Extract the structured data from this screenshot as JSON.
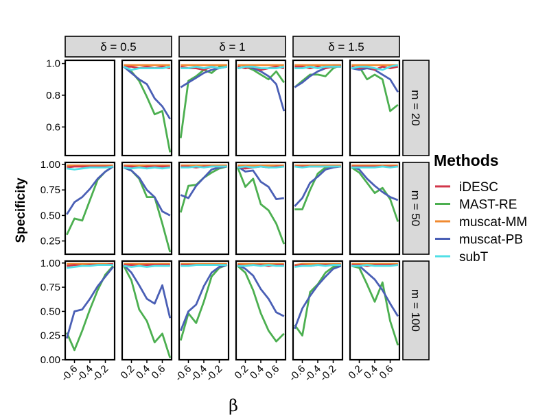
{
  "chart_data": {
    "type": "line",
    "ylabel": "Specificity",
    "xlabel": "β",
    "col_strips": [
      "δ = 0.5",
      "δ = 1",
      "δ = 1.5"
    ],
    "row_strips": [
      "m = 20",
      "m = 50",
      "m = 100"
    ],
    "row_ylim": [
      [
        0.42,
        1.02
      ],
      [
        0.12,
        1.02
      ],
      [
        0.0,
        1.02
      ]
    ],
    "row_yticks": [
      [
        {
          "v": 1.0,
          "label": "1.0"
        },
        {
          "v": 0.8,
          "label": "0.8"
        },
        {
          "v": 0.6,
          "label": "0.6"
        }
      ],
      [
        {
          "v": 1.0,
          "label": "1.00"
        },
        {
          "v": 0.75,
          "label": "0.75"
        },
        {
          "v": 0.5,
          "label": "0.50"
        },
        {
          "v": 0.25,
          "label": "0.25"
        }
      ],
      [
        {
          "v": 1.0,
          "label": "1.00"
        },
        {
          "v": 0.75,
          "label": "0.75"
        },
        {
          "v": 0.5,
          "label": "0.50"
        },
        {
          "v": 0.25,
          "label": "0.25"
        },
        {
          "v": 0.0,
          "label": "0.00"
        }
      ]
    ],
    "side_x": {
      "neg": {
        "x": [
          -0.7,
          -0.6,
          -0.5,
          -0.4,
          -0.3,
          -0.2,
          -0.1
        ],
        "ticks": [
          "-0.6",
          "-0.4",
          "-0.2"
        ],
        "tick_vals": [
          -0.6,
          -0.4,
          -0.2
        ],
        "xlim": [
          -0.72,
          -0.08
        ]
      },
      "pos": {
        "x": [
          0.1,
          0.2,
          0.3,
          0.4,
          0.5,
          0.6,
          0.7
        ],
        "ticks": [
          "0.2",
          "0.4",
          "0.6"
        ],
        "tick_vals": [
          0.2,
          0.4,
          0.6
        ],
        "xlim": [
          0.08,
          0.72
        ]
      }
    },
    "legend": {
      "title": "Methods",
      "items": [
        {
          "name": "iDESC",
          "color": "#d2364a"
        },
        {
          "name": "MAST-RE",
          "color": "#4caf50"
        },
        {
          "name": "muscat-MM",
          "color": "#f08a30"
        },
        {
          "name": "muscat-PB",
          "color": "#4a5fb5"
        },
        {
          "name": "subT",
          "color": "#50dfe6"
        }
      ]
    },
    "panels": [
      {
        "row": 0,
        "col": 0,
        "side": "neg",
        "series": {}
      },
      {
        "row": 0,
        "col": 0,
        "side": "pos",
        "series": {
          "iDESC": [
            0.98,
            0.98,
            0.97,
            0.98,
            0.97,
            0.98,
            0.97
          ],
          "MAST-RE": [
            0.98,
            0.95,
            0.89,
            0.79,
            0.68,
            0.7,
            0.44
          ],
          "muscat-MM": [
            0.99,
            0.99,
            0.99,
            0.99,
            0.99,
            0.99,
            0.99
          ],
          "muscat-PB": [
            0.98,
            0.94,
            0.9,
            0.87,
            0.78,
            0.73,
            0.65
          ],
          "subT": [
            0.98,
            0.96,
            0.97,
            0.97,
            0.97,
            0.97,
            0.98
          ]
        }
      },
      {
        "row": 0,
        "col": 1,
        "side": "neg",
        "series": {
          "iDESC": [
            0.98,
            0.97,
            0.97,
            0.96,
            0.98,
            0.97,
            0.98
          ],
          "MAST-RE": [
            0.53,
            0.89,
            0.92,
            0.96,
            0.94,
            0.98,
            0.99
          ],
          "muscat-MM": [
            0.99,
            0.99,
            0.99,
            0.99,
            0.99,
            0.99,
            0.99
          ],
          "muscat-PB": [
            0.85,
            0.88,
            0.91,
            0.94,
            0.96,
            0.97,
            0.98
          ],
          "subT": [
            0.97,
            0.97,
            0.98,
            0.97,
            0.98,
            0.97,
            0.98
          ]
        }
      },
      {
        "row": 0,
        "col": 1,
        "side": "pos",
        "series": {
          "iDESC": [
            0.98,
            0.97,
            0.98,
            0.96,
            0.97,
            0.98,
            0.97
          ],
          "MAST-RE": [
            0.97,
            0.98,
            0.96,
            0.93,
            0.9,
            0.95,
            0.88
          ],
          "muscat-MM": [
            0.99,
            0.99,
            0.99,
            0.99,
            0.99,
            0.99,
            0.99
          ],
          "muscat-PB": [
            0.97,
            0.98,
            0.97,
            0.95,
            0.92,
            0.87,
            0.7
          ],
          "subT": [
            0.97,
            0.98,
            0.98,
            0.97,
            0.97,
            0.97,
            0.98
          ]
        }
      },
      {
        "row": 0,
        "col": 2,
        "side": "neg",
        "series": {
          "iDESC": [
            0.98,
            0.98,
            0.97,
            0.98,
            0.97,
            0.98,
            0.98
          ],
          "MAST-RE": [
            0.85,
            0.89,
            0.93,
            0.93,
            0.92,
            0.97,
            0.99
          ],
          "muscat-MM": [
            0.99,
            0.99,
            0.99,
            0.99,
            0.99,
            0.99,
            0.99
          ],
          "muscat-PB": [
            0.85,
            0.88,
            0.92,
            0.95,
            0.97,
            0.99,
            0.99
          ],
          "subT": [
            0.97,
            0.97,
            0.98,
            0.97,
            0.98,
            0.98,
            0.98
          ]
        }
      },
      {
        "row": 0,
        "col": 2,
        "side": "pos",
        "series": {
          "iDESC": [
            0.98,
            0.97,
            0.98,
            0.96,
            0.98,
            0.97,
            0.98
          ],
          "MAST-RE": [
            0.97,
            0.98,
            0.9,
            0.93,
            0.9,
            0.7,
            0.74
          ],
          "muscat-MM": [
            0.99,
            0.99,
            0.99,
            0.99,
            0.99,
            0.99,
            0.99
          ],
          "muscat-PB": [
            0.97,
            0.96,
            0.97,
            0.96,
            0.93,
            0.9,
            0.82
          ],
          "subT": [
            0.97,
            0.98,
            0.98,
            0.97,
            0.96,
            0.98,
            0.99
          ]
        }
      },
      {
        "row": 1,
        "col": 0,
        "side": "neg",
        "series": {
          "iDESC": [
            0.97,
            0.98,
            0.98,
            0.98,
            0.98,
            0.98,
            0.98
          ],
          "MAST-RE": [
            0.31,
            0.47,
            0.45,
            0.65,
            0.85,
            0.93,
            0.98
          ],
          "muscat-MM": [
            0.99,
            0.99,
            0.99,
            0.99,
            0.99,
            0.99,
            0.99
          ],
          "muscat-PB": [
            0.51,
            0.63,
            0.68,
            0.76,
            0.86,
            0.93,
            0.98
          ],
          "subT": [
            0.96,
            0.95,
            0.96,
            0.97,
            0.97,
            0.97,
            0.98
          ]
        }
      },
      {
        "row": 1,
        "col": 0,
        "side": "pos",
        "series": {
          "iDESC": [
            0.98,
            0.98,
            0.97,
            0.98,
            0.98,
            0.98,
            0.98
          ],
          "MAST-RE": [
            0.97,
            0.94,
            0.86,
            0.68,
            0.68,
            0.42,
            0.14
          ],
          "muscat-MM": [
            0.99,
            0.99,
            0.99,
            0.99,
            0.99,
            0.99,
            0.99
          ],
          "muscat-PB": [
            0.97,
            0.94,
            0.87,
            0.75,
            0.68,
            0.54,
            0.5
          ],
          "subT": [
            0.97,
            0.96,
            0.97,
            0.96,
            0.97,
            0.96,
            0.97
          ]
        }
      },
      {
        "row": 1,
        "col": 1,
        "side": "neg",
        "series": {
          "iDESC": [
            0.98,
            0.98,
            0.97,
            0.98,
            0.98,
            0.98,
            0.98
          ],
          "MAST-RE": [
            0.53,
            0.79,
            0.8,
            0.87,
            0.92,
            0.96,
            0.98
          ],
          "muscat-MM": [
            0.99,
            0.99,
            0.99,
            0.99,
            0.99,
            0.99,
            0.99
          ],
          "muscat-PB": [
            0.7,
            0.67,
            0.79,
            0.87,
            0.95,
            0.97,
            0.98
          ],
          "subT": [
            0.97,
            0.97,
            0.98,
            0.97,
            0.98,
            0.98,
            0.98
          ]
        }
      },
      {
        "row": 1,
        "col": 1,
        "side": "pos",
        "series": {
          "iDESC": [
            0.98,
            0.96,
            0.97,
            0.98,
            0.97,
            0.98,
            0.98
          ],
          "MAST-RE": [
            0.97,
            0.78,
            0.86,
            0.61,
            0.55,
            0.42,
            0.22
          ],
          "muscat-MM": [
            0.99,
            0.99,
            0.99,
            0.99,
            0.99,
            0.99,
            0.99
          ],
          "muscat-PB": [
            0.98,
            0.93,
            0.94,
            0.83,
            0.78,
            0.66,
            0.67
          ],
          "subT": [
            0.97,
            0.98,
            0.97,
            0.98,
            0.97,
            0.97,
            0.98
          ]
        }
      },
      {
        "row": 1,
        "col": 2,
        "side": "neg",
        "series": {
          "iDESC": [
            0.98,
            0.98,
            0.98,
            0.98,
            0.98,
            0.98,
            0.98
          ],
          "MAST-RE": [
            0.56,
            0.56,
            0.75,
            0.91,
            0.97,
            0.98,
            0.98
          ],
          "muscat-MM": [
            0.99,
            0.99,
            0.99,
            0.99,
            0.99,
            0.99,
            0.99
          ],
          "muscat-PB": [
            0.59,
            0.67,
            0.82,
            0.88,
            0.95,
            0.97,
            0.98
          ],
          "subT": [
            0.98,
            0.97,
            0.98,
            0.98,
            0.98,
            0.98,
            0.98
          ]
        }
      },
      {
        "row": 1,
        "col": 2,
        "side": "pos",
        "series": {
          "iDESC": [
            0.98,
            0.98,
            0.98,
            0.98,
            0.98,
            0.98,
            0.98
          ],
          "MAST-RE": [
            0.97,
            0.92,
            0.82,
            0.72,
            0.77,
            0.66,
            0.44
          ],
          "muscat-MM": [
            0.99,
            0.99,
            0.99,
            0.99,
            0.99,
            0.99,
            0.99
          ],
          "muscat-PB": [
            0.98,
            0.95,
            0.86,
            0.79,
            0.73,
            0.68,
            0.65
          ],
          "subT": [
            0.97,
            0.97,
            0.97,
            0.97,
            0.98,
            0.97,
            0.98
          ]
        }
      },
      {
        "row": 2,
        "col": 0,
        "side": "neg",
        "series": {
          "iDESC": [
            0.97,
            0.98,
            0.97,
            0.98,
            0.98,
            0.98,
            0.99
          ],
          "MAST-RE": [
            0.28,
            0.1,
            0.3,
            0.52,
            0.72,
            0.88,
            0.97
          ],
          "muscat-MM": [
            0.99,
            0.99,
            0.99,
            0.99,
            0.99,
            0.99,
            0.99
          ],
          "muscat-PB": [
            0.22,
            0.5,
            0.52,
            0.63,
            0.76,
            0.86,
            0.96
          ],
          "subT": [
            0.95,
            0.96,
            0.97,
            0.97,
            0.98,
            0.98,
            0.98
          ]
        }
      },
      {
        "row": 2,
        "col": 0,
        "side": "pos",
        "series": {
          "iDESC": [
            0.98,
            0.98,
            0.97,
            0.98,
            0.98,
            0.98,
            0.98
          ],
          "MAST-RE": [
            0.97,
            0.82,
            0.52,
            0.4,
            0.18,
            0.27,
            0.02
          ],
          "muscat-MM": [
            0.99,
            0.99,
            0.99,
            0.99,
            0.99,
            0.99,
            0.99
          ],
          "muscat-PB": [
            0.98,
            0.9,
            0.77,
            0.63,
            0.58,
            0.77,
            0.43
          ],
          "subT": [
            0.97,
            0.96,
            0.97,
            0.96,
            0.97,
            0.97,
            0.97
          ]
        }
      },
      {
        "row": 2,
        "col": 1,
        "side": "neg",
        "series": {
          "iDESC": [
            0.98,
            0.98,
            0.98,
            0.98,
            0.98,
            0.98,
            0.98
          ],
          "MAST-RE": [
            0.2,
            0.48,
            0.38,
            0.6,
            0.86,
            0.95,
            0.98
          ],
          "muscat-MM": [
            0.99,
            0.99,
            0.99,
            0.99,
            0.99,
            0.99,
            0.99
          ],
          "muscat-PB": [
            0.3,
            0.5,
            0.57,
            0.76,
            0.9,
            0.96,
            0.98
          ],
          "subT": [
            0.97,
            0.97,
            0.98,
            0.98,
            0.98,
            0.98,
            0.98
          ]
        }
      },
      {
        "row": 2,
        "col": 1,
        "side": "pos",
        "series": {
          "iDESC": [
            0.98,
            0.97,
            0.98,
            0.98,
            0.97,
            0.98,
            0.98
          ],
          "MAST-RE": [
            0.97,
            0.9,
            0.72,
            0.48,
            0.3,
            0.19,
            0.27
          ],
          "muscat-MM": [
            0.99,
            0.99,
            0.99,
            0.99,
            0.99,
            0.99,
            0.99
          ],
          "muscat-PB": [
            0.98,
            0.94,
            0.87,
            0.73,
            0.63,
            0.49,
            0.45
          ],
          "subT": [
            0.97,
            0.97,
            0.98,
            0.97,
            0.98,
            0.97,
            0.97
          ]
        }
      },
      {
        "row": 2,
        "col": 2,
        "side": "neg",
        "series": {
          "iDESC": [
            0.97,
            0.98,
            0.97,
            0.98,
            0.98,
            0.98,
            0.98
          ],
          "MAST-RE": [
            0.36,
            0.25,
            0.7,
            0.78,
            0.9,
            0.96,
            0.98
          ],
          "muscat-MM": [
            0.98,
            0.99,
            0.99,
            0.99,
            0.99,
            0.99,
            0.99
          ],
          "muscat-PB": [
            0.32,
            0.53,
            0.66,
            0.77,
            0.86,
            0.94,
            0.97
          ],
          "subT": [
            0.96,
            0.97,
            0.97,
            0.98,
            0.97,
            0.98,
            0.98
          ]
        }
      },
      {
        "row": 2,
        "col": 2,
        "side": "pos",
        "series": {
          "iDESC": [
            0.98,
            0.98,
            0.97,
            0.98,
            0.98,
            0.98,
            0.98
          ],
          "MAST-RE": [
            0.97,
            0.95,
            0.78,
            0.6,
            0.8,
            0.4,
            0.15
          ],
          "muscat-MM": [
            0.99,
            0.99,
            0.99,
            0.99,
            0.99,
            0.99,
            0.99
          ],
          "muscat-PB": [
            0.98,
            0.97,
            0.9,
            0.83,
            0.72,
            0.58,
            0.45
          ],
          "subT": [
            0.97,
            0.97,
            0.98,
            0.97,
            0.97,
            0.97,
            0.98
          ]
        }
      }
    ]
  }
}
